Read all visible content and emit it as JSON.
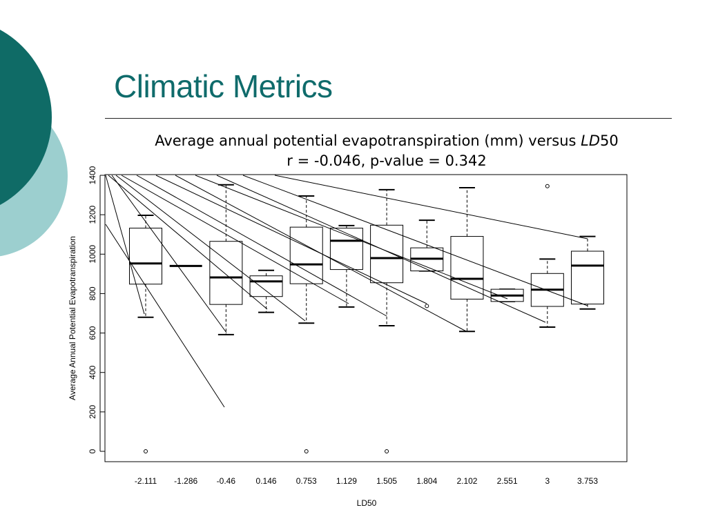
{
  "slide": {
    "title": "Climatic Metrics"
  },
  "chart_data": {
    "type": "boxplot",
    "title": "Average annual potential evapotranspiration (mm) versus",
    "title_italic": "LD",
    "title_suffix": "50",
    "subtitle": "r = -0.046, p-value = 0.342",
    "xlabel": "LD50",
    "ylabel": "Average Annual Potential Evapotranspiration",
    "ylim": [
      -55,
      1400
    ],
    "yticks": [
      0,
      200,
      400,
      600,
      800,
      1000,
      1200,
      1400
    ],
    "categories": [
      "-2.111",
      "-1.286",
      "-0.46",
      "0.146",
      "0.753",
      "1.129",
      "1.505",
      "1.804",
      "2.102",
      "2.551",
      "3",
      "3.753"
    ],
    "boxes": [
      {
        "whisker_low": 680,
        "q1": 848,
        "median": 953,
        "q3": 1132,
        "whisker_high": 1197,
        "outliers": [
          0
        ]
      },
      {
        "whisker_low": 940,
        "q1": 940,
        "median": 940,
        "q3": 940,
        "whisker_high": 940,
        "outliers": []
      },
      {
        "whisker_low": 592,
        "q1": 745,
        "median": 882,
        "q3": 1065,
        "whisker_high": 1352,
        "outliers": []
      },
      {
        "whisker_low": 705,
        "q1": 785,
        "median": 862,
        "q3": 890,
        "whisker_high": 918,
        "outliers": []
      },
      {
        "whisker_low": 650,
        "q1": 850,
        "median": 948,
        "q3": 1137,
        "whisker_high": 1295,
        "outliers": [
          0
        ]
      },
      {
        "whisker_low": 732,
        "q1": 922,
        "median": 1068,
        "q3": 1132,
        "whisker_high": 1145,
        "outliers": []
      },
      {
        "whisker_low": 637,
        "q1": 855,
        "median": 980,
        "q3": 1147,
        "whisker_high": 1327,
        "outliers": [
          0
        ]
      },
      {
        "whisker_low": 915,
        "q1": 915,
        "median": 977,
        "q3": 1032,
        "whisker_high": 1172,
        "outliers": [
          737
        ]
      },
      {
        "whisker_low": 608,
        "q1": 772,
        "median": 875,
        "q3": 1090,
        "whisker_high": 1337,
        "outliers": []
      },
      {
        "whisker_low": 760,
        "q1": 760,
        "median": 790,
        "q3": 822,
        "whisker_high": 822,
        "outliers": []
      },
      {
        "whisker_low": 630,
        "q1": 735,
        "median": 820,
        "q3": 902,
        "whisker_high": 975,
        "outliers": [
          1345
        ]
      },
      {
        "whisker_low": 722,
        "q1": 747,
        "median": 942,
        "q3": 1015,
        "whisker_high": 1090,
        "outliers": []
      }
    ]
  }
}
